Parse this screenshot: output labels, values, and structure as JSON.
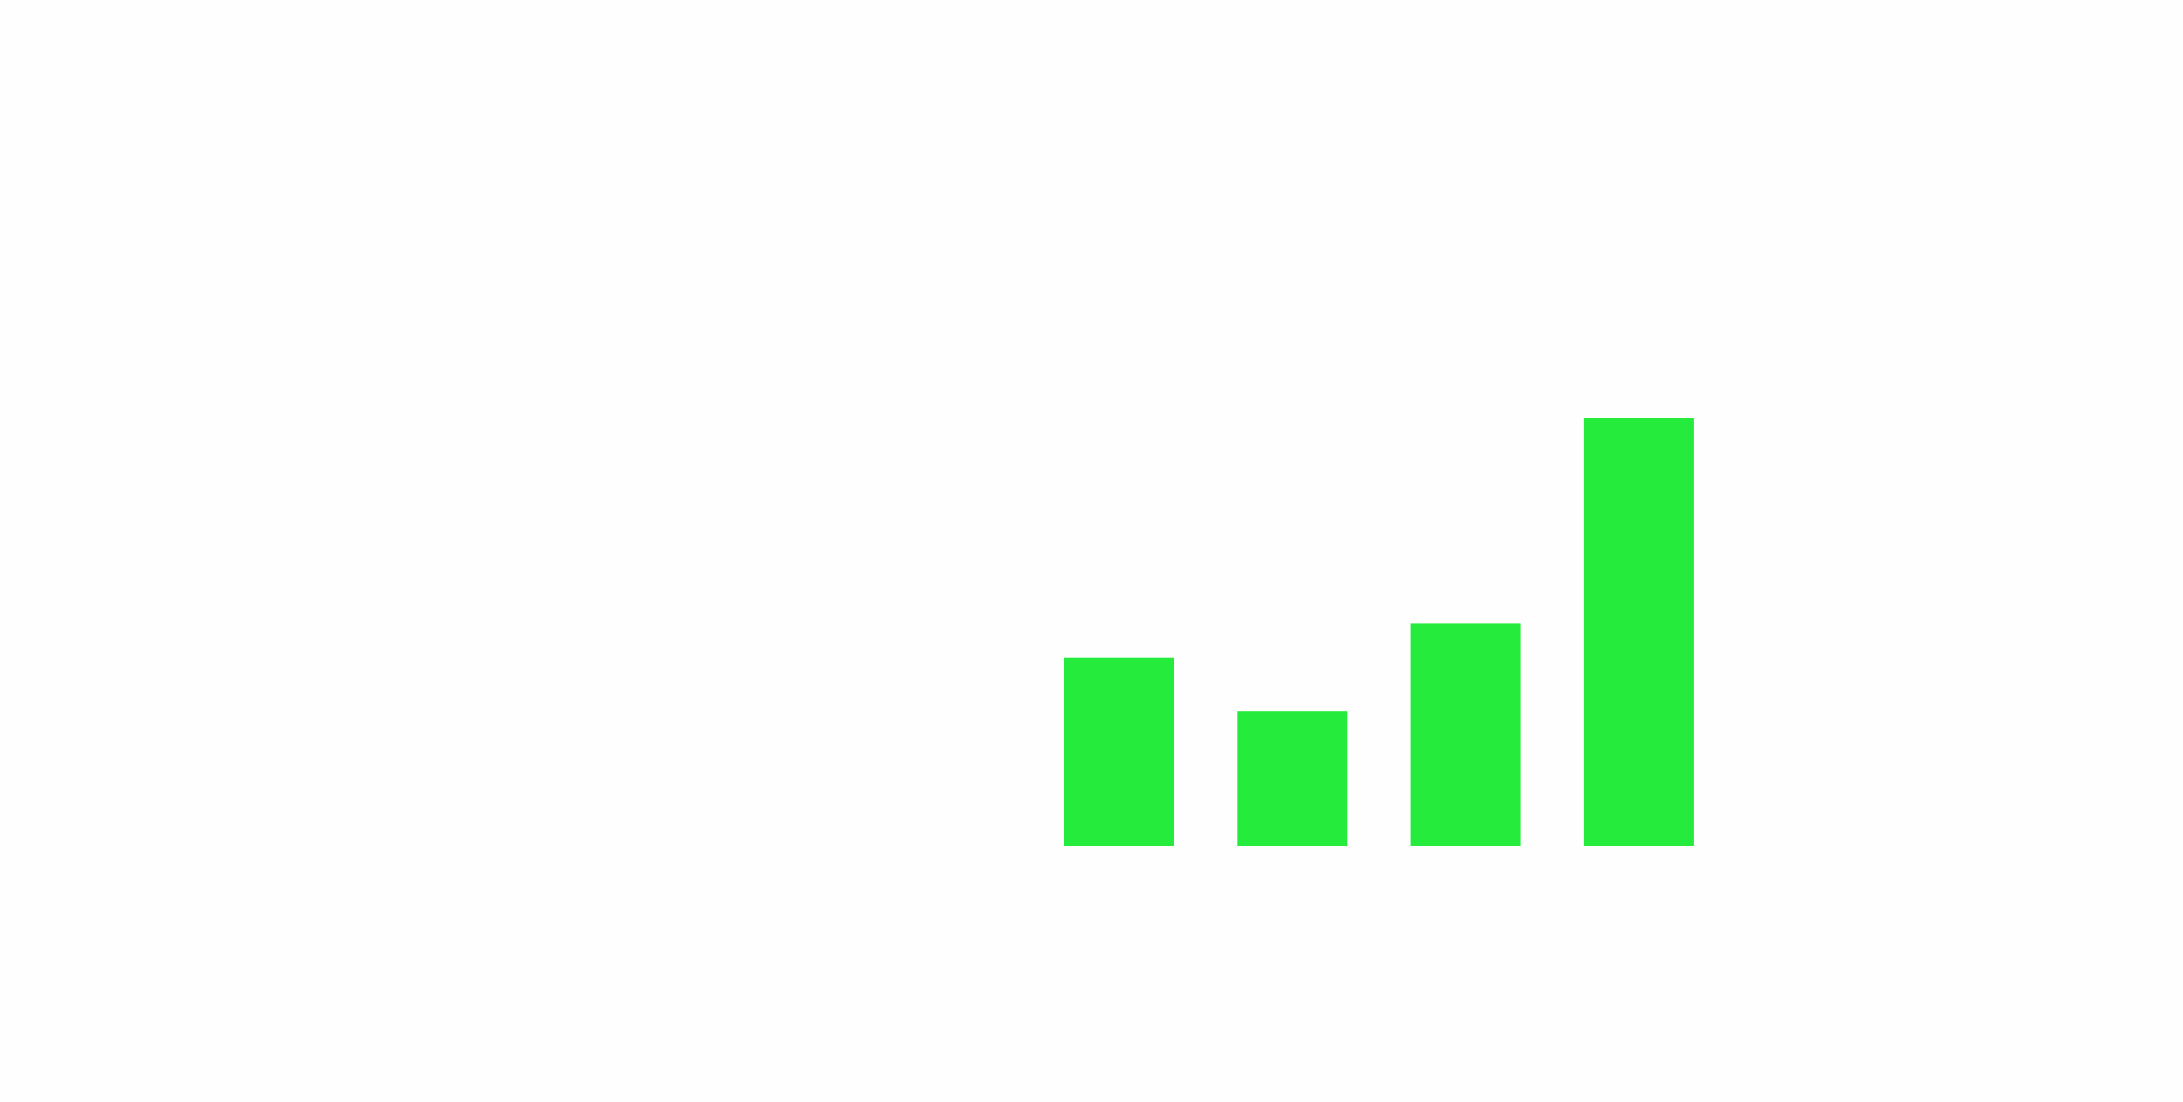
{
  "chart_data": {
    "type": "bar",
    "categories": [
      "",
      "",
      "",
      ""
    ],
    "values": [
      4.4,
      3.15,
      5.2,
      10.0
    ],
    "ylim": [
      0,
      10
    ],
    "grid": false,
    "axes_visible": false,
    "legend": "none",
    "bar_color": "#25eb3c",
    "background": "#fefefe"
  }
}
